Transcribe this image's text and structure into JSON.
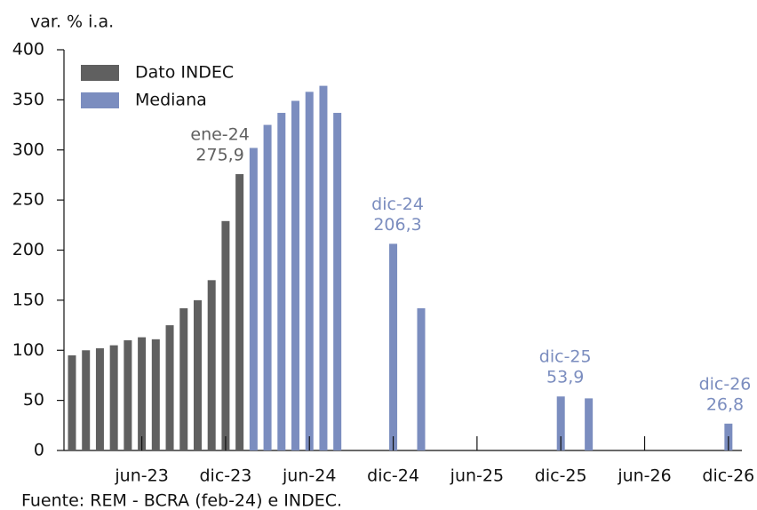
{
  "chart_data": {
    "type": "bar",
    "y_axis_label": "var. % i.a.",
    "source": "Fuente: REM - BCRA (feb-24) e INDEC.",
    "legend": "upper left",
    "categories": [
      null,
      null,
      null,
      null,
      null,
      "jun-23",
      null,
      null,
      null,
      null,
      null,
      "dic-23",
      null,
      null,
      null,
      null,
      null,
      "jun-24",
      null,
      null,
      null,
      null,
      null,
      "dic-24",
      null,
      null,
      null,
      null,
      null,
      "jun-25",
      null,
      null,
      null,
      null,
      null,
      "dic-25",
      null,
      null,
      null,
      null,
      null,
      "jun-26",
      null,
      null,
      null,
      null,
      null,
      "dic-26"
    ],
    "series": [
      {
        "name": "Dato INDEC",
        "color": "#606060",
        "values": [
          95,
          100,
          102,
          105,
          110,
          113,
          111,
          125,
          142,
          150,
          170,
          229,
          275.9,
          null,
          null,
          null,
          null,
          null,
          null,
          null,
          null,
          null,
          null,
          null,
          null,
          null,
          null,
          null,
          null,
          null,
          null,
          null,
          null,
          null,
          null,
          null,
          null,
          null,
          null,
          null,
          null,
          null,
          null,
          null,
          null,
          null,
          null,
          null
        ],
        "value_labels": [
          null,
          null,
          null,
          null,
          null,
          null,
          null,
          null,
          null,
          null,
          null,
          null,
          "275,9",
          null,
          null,
          null,
          null,
          null,
          null,
          null,
          null,
          null,
          null,
          null,
          null,
          null,
          null,
          null,
          null,
          null,
          null,
          null,
          null,
          null,
          null,
          null,
          null,
          null,
          null,
          null,
          null,
          null,
          null,
          null,
          null,
          null,
          null,
          null
        ],
        "label_names": [
          null,
          null,
          null,
          null,
          null,
          null,
          null,
          null,
          null,
          null,
          null,
          null,
          "ene-24",
          null,
          null,
          null,
          null,
          null,
          null,
          null,
          null,
          null,
          null,
          null,
          null,
          null,
          null,
          null,
          null,
          null,
          null,
          null,
          null,
          null,
          null,
          null,
          null,
          null,
          null,
          null,
          null,
          null,
          null,
          null,
          null,
          null,
          null,
          null
        ]
      },
      {
        "name": "Mediana",
        "color": "#7b8dbf",
        "values": [
          null,
          null,
          null,
          null,
          null,
          null,
          null,
          null,
          null,
          null,
          null,
          null,
          null,
          302,
          325,
          337,
          349,
          358,
          364,
          337,
          null,
          null,
          null,
          206.3,
          null,
          142,
          null,
          null,
          null,
          null,
          null,
          null,
          null,
          null,
          null,
          53.9,
          null,
          52,
          null,
          null,
          null,
          null,
          null,
          null,
          null,
          null,
          null,
          26.8
        ],
        "value_labels": [
          null,
          null,
          null,
          null,
          null,
          null,
          null,
          null,
          null,
          null,
          null,
          null,
          null,
          null,
          null,
          null,
          null,
          null,
          null,
          null,
          null,
          null,
          null,
          "206,3",
          null,
          null,
          null,
          null,
          null,
          null,
          null,
          null,
          null,
          null,
          null,
          "53,9",
          null,
          null,
          null,
          null,
          null,
          null,
          null,
          null,
          null,
          null,
          null,
          "26,8"
        ],
        "label_names": [
          null,
          null,
          null,
          null,
          null,
          null,
          null,
          null,
          null,
          null,
          null,
          null,
          null,
          null,
          null,
          null,
          null,
          null,
          null,
          null,
          null,
          null,
          null,
          "dic-24",
          null,
          null,
          null,
          null,
          null,
          null,
          null,
          null,
          null,
          null,
          null,
          "dic-25",
          null,
          null,
          null,
          null,
          null,
          null,
          null,
          null,
          null,
          null,
          null,
          "dic-26"
        ]
      }
    ],
    "ylim": [
      0,
      400
    ],
    "yticks": [
      0,
      50,
      100,
      150,
      200,
      250,
      300,
      350,
      400
    ],
    "grid": false
  }
}
